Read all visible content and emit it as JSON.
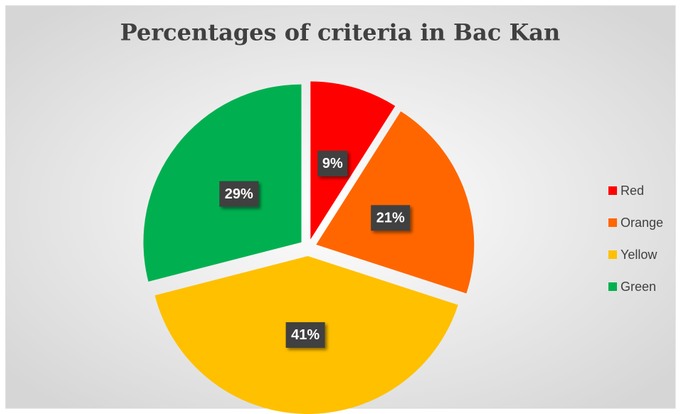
{
  "chart_data": {
    "type": "pie",
    "title": "Percentages of criteria in Bac Kan",
    "categories": [
      "Red",
      "Orange",
      "Yellow",
      "Green"
    ],
    "values": [
      9,
      21,
      41,
      29
    ],
    "value_labels": [
      "9%",
      "21%",
      "41%",
      "29%"
    ],
    "colors": [
      "#ff0000",
      "#ff6600",
      "#ffc000",
      "#00b050"
    ],
    "exploded": true,
    "legend": "right"
  }
}
